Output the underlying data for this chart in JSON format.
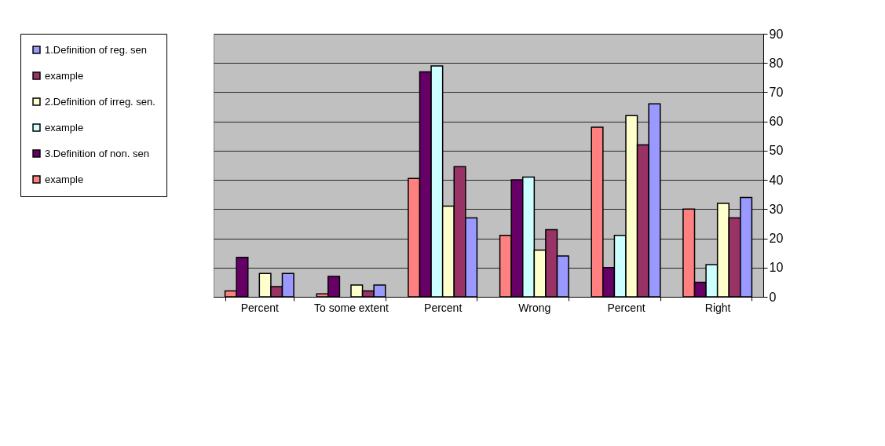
{
  "chart_data": {
    "type": "bar",
    "categories": [
      "Percent",
      "To some extent",
      "Percent",
      "Wrong",
      "Percent",
      "Right"
    ],
    "series": [
      {
        "name": "example",
        "color": "#ff8080",
        "values": [
          2,
          1,
          40.5,
          21,
          58,
          30
        ]
      },
      {
        "name": "3.Definition of non. sen",
        "color": "#660066",
        "values": [
          13.5,
          7,
          77,
          40,
          10,
          5
        ]
      },
      {
        "name": "example",
        "color": "#ccffff",
        "values": [
          null,
          null,
          79,
          41,
          21,
          11
        ]
      },
      {
        "name": "2.Definition of irreg. sen.",
        "color": "#ffffcc",
        "values": [
          8,
          4,
          31,
          16,
          62,
          32
        ]
      },
      {
        "name": "example",
        "color": "#993366",
        "values": [
          3.5,
          2,
          44.5,
          23,
          52,
          27
        ]
      },
      {
        "name": "1.Definition of reg. sen",
        "color": "#9999ff",
        "values": [
          8,
          4,
          27,
          14,
          66,
          34
        ]
      }
    ],
    "ylim": [
      0,
      90
    ],
    "yticks": [
      0,
      10,
      20,
      30,
      40,
      50,
      60,
      70,
      80,
      90
    ],
    "grid": "y",
    "legend": "left"
  }
}
